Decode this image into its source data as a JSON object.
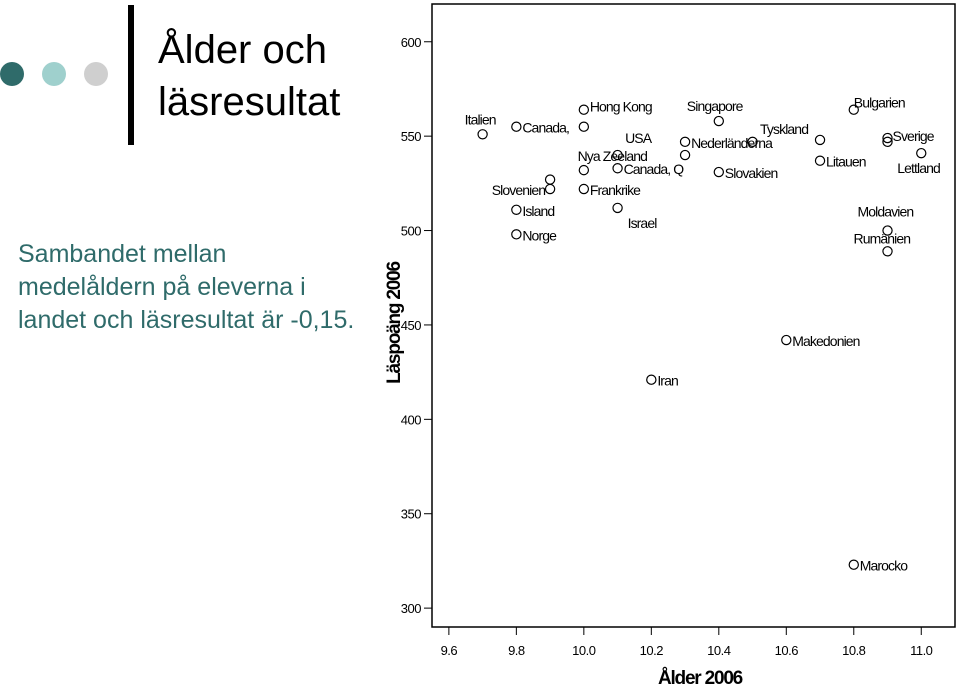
{
  "slide": {
    "title": "Ålder och läsresultat",
    "subtitle": "Sambandet mellan medelåldern på eleverna i landet och läsresultat är -0,15.",
    "accent_colors": [
      "#2f6b6a",
      "#9fd0cd",
      "#cfcfcf"
    ]
  },
  "chart_data": {
    "type": "scatter",
    "title": "",
    "xlabel": "Ålder 2006",
    "ylabel": "Läspoäng 2006",
    "xlim": [
      9.55,
      11.1
    ],
    "ylim": [
      290,
      620
    ],
    "xticks": [
      "9.6",
      "9.8",
      "10.0",
      "10.2",
      "10.4",
      "10.6",
      "10.8",
      "11.0"
    ],
    "yticks": [
      "300",
      "350",
      "400",
      "450",
      "500",
      "550",
      "600"
    ],
    "grid": false,
    "points": [
      {
        "label": "Italien",
        "x": 9.7,
        "y": 551
      },
      {
        "label": "Canada,",
        "x": 9.8,
        "y": 555
      },
      {
        "label": "",
        "x": 10.0,
        "y": 555
      },
      {
        "label": "Hong Kong",
        "x": 10.0,
        "y": 564
      },
      {
        "label": "Nya Zeeland",
        "x": 10.1,
        "y": 540
      },
      {
        "label": "USA",
        "x": 10.3,
        "y": 540
      },
      {
        "label": "",
        "x": 9.9,
        "y": 527
      },
      {
        "label": "",
        "x": 10.0,
        "y": 532
      },
      {
        "label": "Canada, Q",
        "x": 10.1,
        "y": 533
      },
      {
        "label": "Slovenien",
        "x": 9.9,
        "y": 522
      },
      {
        "label": "Frankrike",
        "x": 10.0,
        "y": 522
      },
      {
        "label": "Island",
        "x": 9.8,
        "y": 511
      },
      {
        "label": "Israel",
        "x": 10.1,
        "y": 512
      },
      {
        "label": "Norge",
        "x": 9.8,
        "y": 498
      },
      {
        "label": "Singapore",
        "x": 10.4,
        "y": 558
      },
      {
        "label": "Nederländerna",
        "x": 10.3,
        "y": 547
      },
      {
        "label": "",
        "x": 10.5,
        "y": 547
      },
      {
        "label": "Tyskland",
        "x": 10.7,
        "y": 548
      },
      {
        "label": "Bulgarien",
        "x": 10.8,
        "y": 564
      },
      {
        "label": "Slovakien",
        "x": 10.4,
        "y": 531
      },
      {
        "label": "Litauen",
        "x": 10.7,
        "y": 537
      },
      {
        "label": "Sverige",
        "x": 10.9,
        "y": 549
      },
      {
        "label": "",
        "x": 10.9,
        "y": 547
      },
      {
        "label": "Lettland",
        "x": 11.0,
        "y": 541
      },
      {
        "label": "Moldavien",
        "x": 10.9,
        "y": 500
      },
      {
        "label": "Rumänien",
        "x": 10.9,
        "y": 489
      },
      {
        "label": "Makedonien",
        "x": 10.6,
        "y": 442
      },
      {
        "label": "Iran",
        "x": 10.2,
        "y": 421
      },
      {
        "label": "Marocko",
        "x": 10.8,
        "y": 323
      }
    ]
  }
}
